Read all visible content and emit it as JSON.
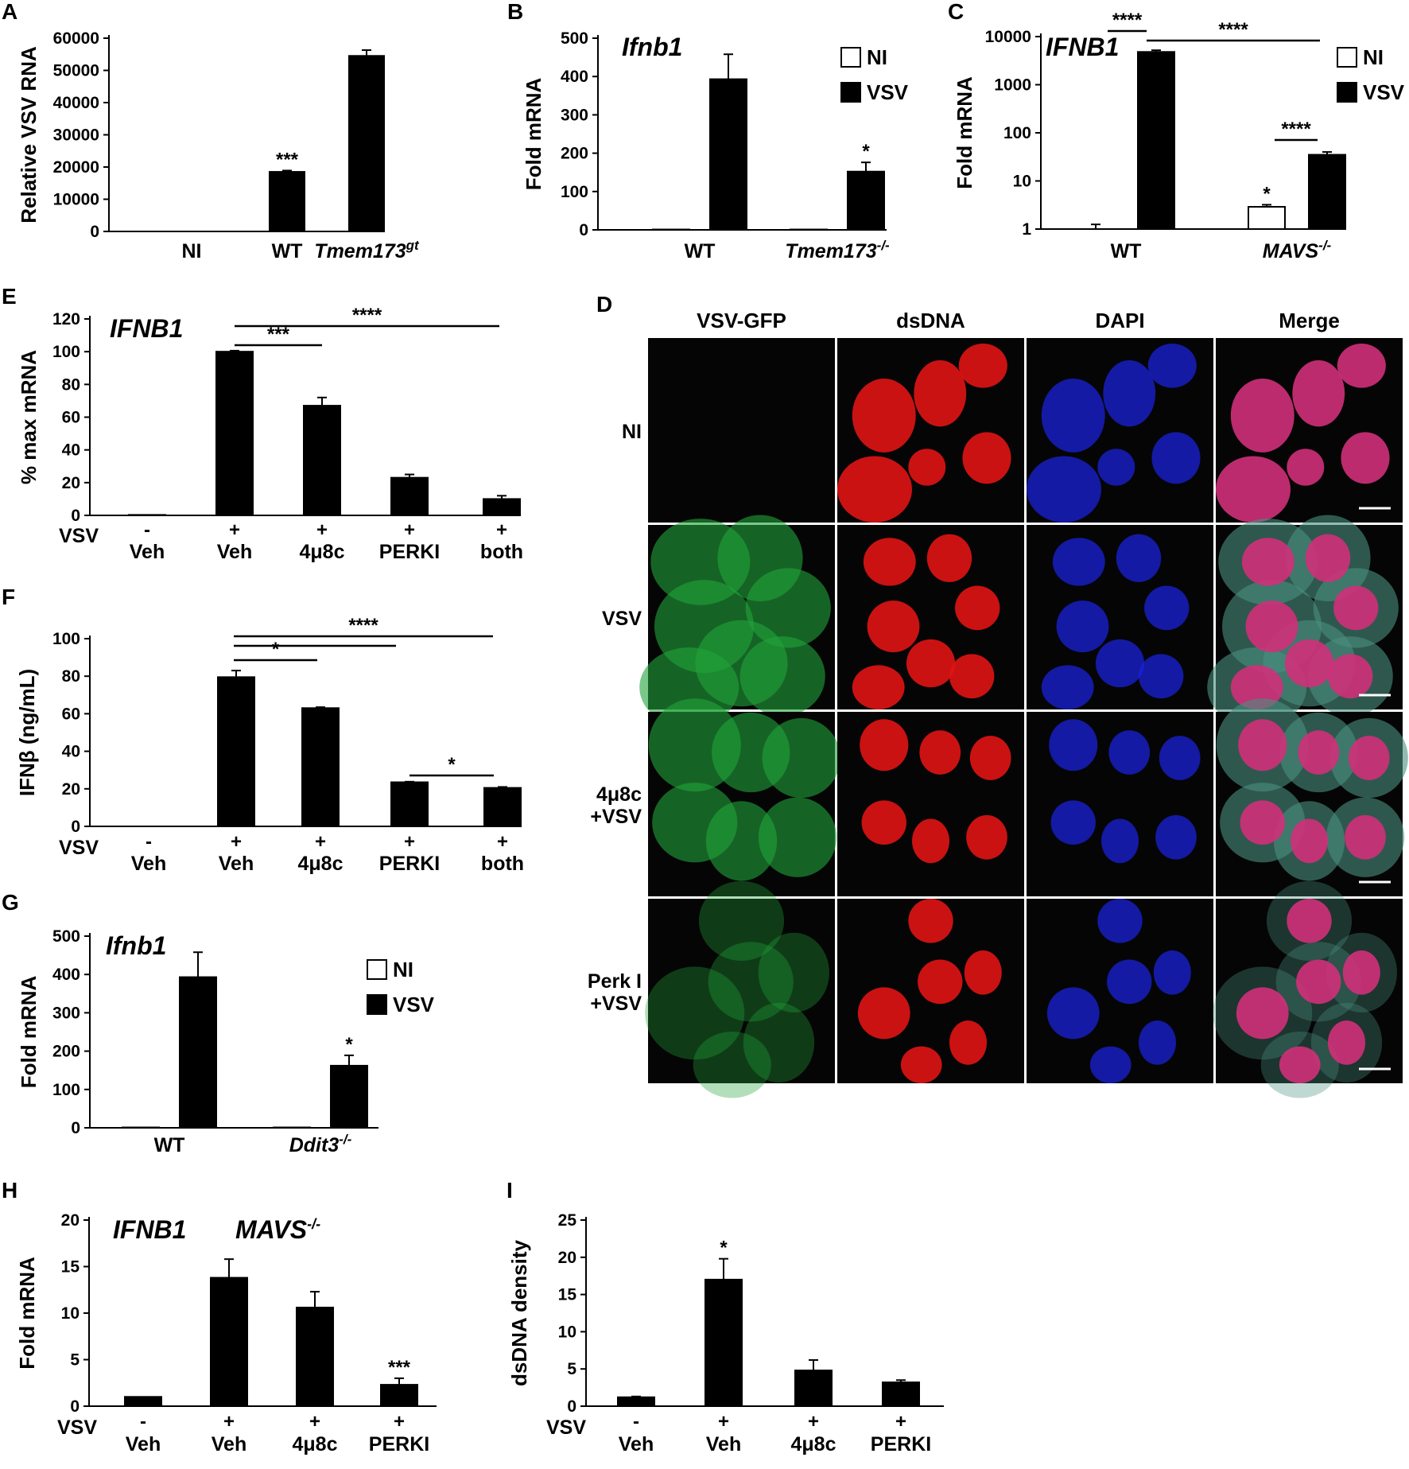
{
  "panel_labels": {
    "A": "A",
    "B": "B",
    "C": "C",
    "D": "D",
    "E": "E",
    "F": "F",
    "G": "G",
    "H": "H",
    "I": "I"
  },
  "colors": {
    "bar_fill": "#000000",
    "ni_fill": "#ffffff",
    "axis": "#000000",
    "image_bg": "#050505",
    "green": "#22a33a",
    "red": "#e01414",
    "blue": "#1a22d8",
    "magenta": "#d0307a"
  },
  "chart_data": [
    {
      "id": "A",
      "type": "bar",
      "ylabel": "Relative VSV RNA",
      "yticks": [
        "0",
        "10000",
        "20000",
        "30000",
        "40000",
        "50000",
        "60000"
      ],
      "ylim": [
        0,
        60000
      ],
      "categories": [
        "NI",
        "WT",
        "Tmem173"
      ],
      "category_sup": [
        "",
        "",
        "gt"
      ],
      "values": [
        0,
        18500,
        54500
      ],
      "errors": [
        0,
        400,
        1800
      ],
      "annotations": [
        {
          "category": "WT",
          "text": "***"
        }
      ]
    },
    {
      "id": "B",
      "type": "bar",
      "gene": "Ifnb1",
      "ylabel": "Fold mRNA",
      "yticks": [
        "0",
        "100",
        "200",
        "300",
        "400",
        "500"
      ],
      "ylim": [
        0,
        500
      ],
      "categories": [
        "WT",
        "Tmem173"
      ],
      "category_sup": [
        "",
        "-/-"
      ],
      "series": [
        {
          "name": "NI",
          "values": [
            1,
            1
          ],
          "errors": [
            0,
            0
          ]
        },
        {
          "name": "VSV",
          "values": [
            393,
            152
          ],
          "errors": [
            65,
            24
          ]
        }
      ],
      "annotations": [
        {
          "category": "Tmem173",
          "series": "VSV",
          "text": "*"
        }
      ]
    },
    {
      "id": "C",
      "type": "bar",
      "scale": "log",
      "gene": "IFNB1",
      "ylabel": "Fold mRNA",
      "yticks": [
        "1",
        "10",
        "100",
        "1000",
        "10000"
      ],
      "ylim": [
        1,
        10000
      ],
      "categories": [
        "WT",
        "MAVS"
      ],
      "category_sup": [
        "",
        "-/-"
      ],
      "series": [
        {
          "name": "NI",
          "values": [
            1,
            2.9
          ],
          "errors": [
            0.25,
            0.3
          ]
        },
        {
          "name": "VSV",
          "values": [
            4800,
            35
          ],
          "errors": [
            400,
            5
          ]
        }
      ],
      "annotations": [
        {
          "type": "bracket",
          "text": "****",
          "between": "WT NI / WT VSV"
        },
        {
          "type": "bracket",
          "text": "****",
          "between": "WT VSV / MAVS VSV"
        },
        {
          "type": "bracket",
          "text": "****",
          "between": "MAVS NI / MAVS VSV"
        },
        {
          "type": "star",
          "text": "*",
          "category": "MAVS",
          "series": "NI"
        }
      ]
    },
    {
      "id": "E",
      "type": "bar",
      "gene": "IFNB1",
      "ylabel": "% max mRNA",
      "yticks": [
        "0",
        "20",
        "40",
        "60",
        "80",
        "100",
        "120"
      ],
      "ylim": [
        0,
        120
      ],
      "row_label": "VSV",
      "signs": [
        "-",
        "+",
        "+",
        "+",
        "+"
      ],
      "categories": [
        "Veh",
        "Veh",
        "4μ8c",
        "PERKI",
        "both"
      ],
      "values": [
        0.3,
        100,
        67,
        23,
        10
      ],
      "errors": [
        0,
        0.6,
        5,
        2,
        2
      ],
      "annotations": [
        {
          "type": "bracket",
          "text": "***",
          "between": "Veh+ / 4μ8c"
        },
        {
          "type": "bracket",
          "text": "****",
          "between": "Veh+ / both"
        }
      ]
    },
    {
      "id": "F",
      "type": "bar",
      "ylabel": "IFNβ (ng/mL)",
      "yticks": [
        "0",
        "20",
        "40",
        "60",
        "80",
        "100"
      ],
      "ylim": [
        0,
        100
      ],
      "row_label": "VSV",
      "signs": [
        "-",
        "+",
        "+",
        "+",
        "+"
      ],
      "categories": [
        "Veh",
        "Veh",
        "4μ8c",
        "PERKI",
        "both"
      ],
      "values": [
        0,
        79.5,
        63,
        23.5,
        20.5
      ],
      "errors": [
        0,
        3.5,
        0.5,
        0.3,
        0.5
      ],
      "annotations": [
        {
          "type": "bracket",
          "text": "*",
          "between": "Veh+ / 4μ8c"
        },
        {
          "type": "bracket",
          "text": "****",
          "between": "Veh+ / PERKI, Veh+ / both"
        },
        {
          "type": "bracket",
          "text": "*",
          "between": "PERKI / both"
        }
      ]
    },
    {
      "id": "G",
      "type": "bar",
      "gene": "Ifnb1",
      "ylabel": "Fold mRNA",
      "yticks": [
        "0",
        "100",
        "200",
        "300",
        "400",
        "500"
      ],
      "ylim": [
        0,
        500
      ],
      "categories": [
        "WT",
        "Ddit3"
      ],
      "category_sup": [
        "",
        "-/-"
      ],
      "series": [
        {
          "name": "NI",
          "values": [
            1,
            1
          ],
          "errors": [
            0,
            0
          ]
        },
        {
          "name": "VSV",
          "values": [
            393,
            162
          ],
          "errors": [
            65,
            27
          ]
        }
      ],
      "annotations": [
        {
          "category": "Ddit3",
          "series": "VSV",
          "text": "*"
        }
      ]
    },
    {
      "id": "H",
      "type": "bar",
      "gene": "IFNB1",
      "gene2": "MAVS",
      "gene2_sup": "-/-",
      "ylabel": "Fold mRNA",
      "yticks": [
        "0",
        "5",
        "10",
        "15",
        "20"
      ],
      "ylim": [
        0,
        20
      ],
      "row_label": "VSV",
      "signs": [
        "-",
        "+",
        "+",
        "+"
      ],
      "categories": [
        "Veh",
        "Veh",
        "4μ8c",
        "PERKI"
      ],
      "values": [
        1,
        13.8,
        10.6,
        2.3
      ],
      "errors": [
        0,
        2,
        1.7,
        0.7
      ],
      "annotations": [
        {
          "category": "PERKI",
          "text": "***"
        }
      ]
    },
    {
      "id": "I",
      "type": "bar",
      "ylabel": "dsDNA density",
      "yticks": [
        "0",
        "5",
        "10",
        "15",
        "20",
        "25"
      ],
      "ylim": [
        0,
        25
      ],
      "row_label": "VSV",
      "signs": [
        "-",
        "+",
        "+",
        "+"
      ],
      "categories": [
        "Veh",
        "Veh",
        "4μ8c",
        "PERKI"
      ],
      "values": [
        1.2,
        17,
        4.8,
        3.2
      ],
      "errors": [
        0.1,
        2.8,
        1.4,
        0.3
      ],
      "annotations": [
        {
          "category": "Veh+",
          "text": "*"
        }
      ]
    }
  ],
  "microscopy": {
    "id": "D",
    "columns": [
      "VSV-GFP",
      "dsDNA",
      "DAPI",
      "Merge"
    ],
    "rows": [
      {
        "label_lines": [
          "NI"
        ]
      },
      {
        "label_lines": [
          "VSV"
        ]
      },
      {
        "label_lines": [
          "4μ8c",
          "+VSV"
        ]
      },
      {
        "label_lines": [
          "Perk I",
          "+VSV"
        ]
      }
    ]
  }
}
